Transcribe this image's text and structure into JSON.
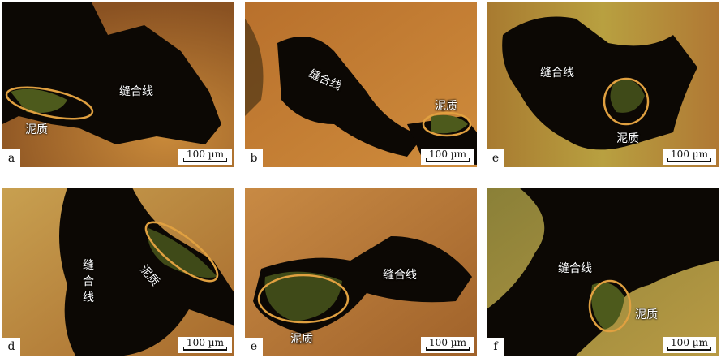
{
  "panels": [
    {
      "letter": "a",
      "suture_label": "缝合线",
      "mud_label": "泥质",
      "scale": "100 µm"
    },
    {
      "letter": "b",
      "suture_label": "缝合线",
      "mud_label": "泥质",
      "scale": "100 µm"
    },
    {
      "letter": "e",
      "suture_label": "缝合线",
      "mud_label": "泥质",
      "scale": "100 µm"
    },
    {
      "letter": "d",
      "suture_label": "缝合线",
      "mud_label": "泥质",
      "scale": "100 µm"
    },
    {
      "letter": "e",
      "suture_label": "缝合线",
      "mud_label": "泥质",
      "scale": "100 µm"
    },
    {
      "letter": "f",
      "suture_label": "缝合线",
      "mud_label": "泥质",
      "scale": "100 µm"
    }
  ],
  "colors": {
    "rock_orange": "#c0782e",
    "rock_yellow": "#b8a040",
    "suture_dark": "#0c0804",
    "mud_green": "#5a6a20",
    "ellipse": "#e0a040"
  }
}
